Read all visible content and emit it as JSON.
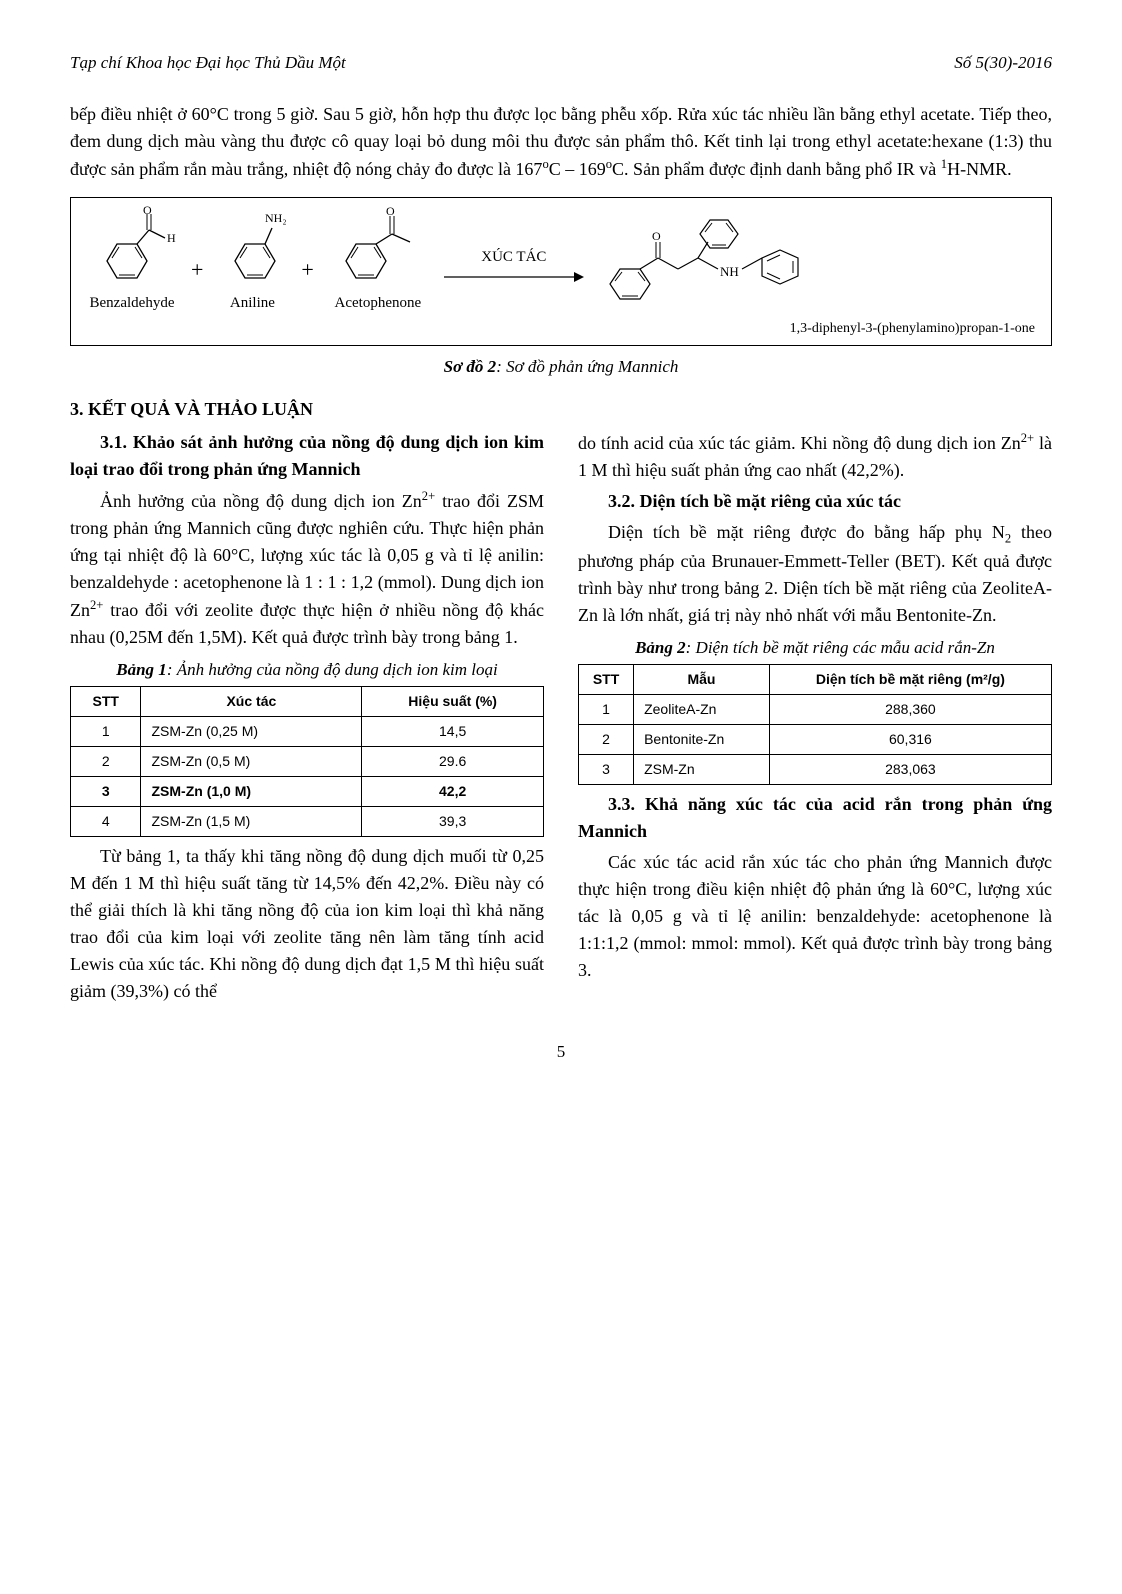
{
  "header": {
    "journal": "Tạp chí Khoa học Đại học Thủ Dầu Một",
    "issue": "Số 5(30)-2016"
  },
  "top_paragraph_parts": {
    "p1a": "bếp điều nhiệt ở 60°C trong 5 giờ. Sau 5 giờ, hỗn hợp thu được lọc bằng phễu xốp. Rửa xúc tác nhiều lần bằng ethyl acetate. Tiếp theo, đem dung dịch màu vàng thu được cô quay loại bỏ dung môi thu được sản phẩm thô. Kết tinh lại trong ethyl acetate:hexane (1:3) thu được sản phẩm rắn màu trắng, nhiệt độ nóng chảy đo được là 167",
    "p1b": "C – 169",
    "p1c": "C. Sản phẩm được định danh bằng phổ IR và ",
    "p1d": "H-NMR."
  },
  "scheme": {
    "reagents": [
      {
        "name": "Benzaldehyde",
        "top_label": "O",
        "side_label": "H"
      },
      {
        "name": "Aniline",
        "top_label": "NH₂"
      },
      {
        "name": "Acetophenone",
        "top_label": "O"
      }
    ],
    "arrow_label": "XÚC TÁC",
    "product_label_top": "O",
    "product_label_nh": "NH",
    "product_name": "1,3-diphenyl-3-(phenylamino)propan-1-one",
    "caption_prefix": "Sơ đồ 2",
    "caption_rest": ": Sơ đồ phản ứng Mannich"
  },
  "section3": "3. KẾT QUẢ VÀ THẢO LUẬN",
  "sub31": "3.1. Khảo sát ảnh hưởng của nồng độ dung dịch ion kim loại trao đổi trong phản ứng Mannich",
  "left": {
    "p1a": "Ảnh hưởng của nồng độ dung dịch ion Zn",
    "p1b": " trao đổi ZSM trong phản ứng Mannich cũng được nghiên cứu. Thực hiện phản ứng tại nhiệt độ là 60°C, lượng xúc tác là 0,05 g và tỉ lệ anilin: benzaldehyde : acetophenone là 1 : 1 : 1,2 (mmol). Dung dịch ion Zn",
    "p1c": " trao đổi với zeolite được thực hiện ở nhiều nồng độ khác nhau (0,25M đến 1,5M). Kết quả được trình bày trong bảng 1.",
    "table1_caption_b": "Bảng 1",
    "table1_caption_r": ": Ảnh hưởng của nồng độ dung dịch ion kim loại",
    "table1": {
      "headers": [
        "STT",
        "Xúc tác",
        "Hiệu suất (%)"
      ],
      "rows": [
        [
          "1",
          "ZSM-Zn (0,25 M)",
          "14,5"
        ],
        [
          "2",
          "ZSM-Zn (0,5 M)",
          "29.6"
        ],
        [
          "3",
          "ZSM-Zn (1,0 M)",
          "42,2"
        ],
        [
          "4",
          "ZSM-Zn (1,5 M)",
          "39,3"
        ]
      ],
      "bold_row_index": 2
    },
    "p2": "Từ bảng 1, ta thấy khi tăng nồng độ dung dịch muối từ 0,25 M đến 1 M thì hiệu suất tăng từ 14,5% đến 42,2%. Điều này có thể giải thích là khi tăng nồng độ của ion kim loại thì khả năng trao đổi của kim loại với zeolite tăng nên làm tăng tính acid Lewis của xúc tác. Khi nồng độ dung dịch đạt 1,5 M thì hiệu suất giảm (39,3%) có thể"
  },
  "right": {
    "p0a": "do tính acid của xúc tác giảm. Khi nồng độ dung dịch ion Zn",
    "p0b": " là 1 M thì hiệu suất phản ứng cao nhất (42,2%).",
    "sub32": "3.2. Diện tích bề mặt riêng của xúc tác",
    "p1a": "Diện tích bề mặt riêng được đo bằng hấp phụ N",
    "p1b": " theo phương pháp của Brunauer-Emmett-Teller (BET). Kết quả được trình bày như trong bảng 2. Diện tích bề mặt riêng của ZeoliteA-Zn là lớn nhất, giá trị này nhỏ nhất với mẫu Bentonite-Zn.",
    "table2_caption_b": "Bảng 2",
    "table2_caption_r": ": Diện tích bề mặt riêng các mẫu acid rắn-Zn",
    "table2": {
      "headers": [
        "STT",
        "Mẫu",
        "Diện tích bề mặt riêng (m²/g)"
      ],
      "rows": [
        [
          "1",
          "ZeoliteA-Zn",
          "288,360"
        ],
        [
          "2",
          "Bentonite-Zn",
          "60,316"
        ],
        [
          "3",
          "ZSM-Zn",
          "283,063"
        ]
      ]
    },
    "sub33": "3.3. Khả năng xúc tác của acid rắn trong phản ứng Mannich",
    "p2": "Các xúc tác acid rắn xúc tác cho phản ứng Mannich được thực hiện trong điều kiện nhiệt độ phản ứng là 60°C, lượng xúc tác là 0,05 g và tỉ lệ anilin: benzaldehyde: acetophenone là 1:1:1,2 (mmol: mmol: mmol). Kết quả được trình bày trong bảng 3."
  },
  "page_number": "5"
}
